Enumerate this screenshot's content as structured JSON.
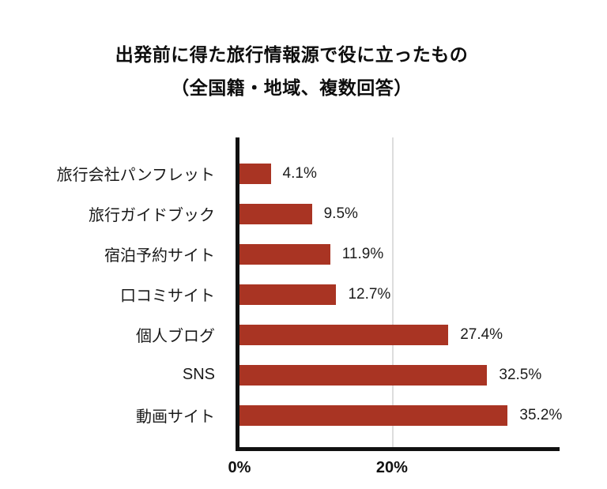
{
  "chart": {
    "title_line1": "出発前に得た旅行情報源で役に立ったもの",
    "title_line2": "（全国籍・地域、複数回答）",
    "bar_color": "#a93423",
    "axis_color": "#111111",
    "gridline_color": "#dddddd",
    "xtick_0": "0%",
    "xtick_20": "20%"
  },
  "chart_data": {
    "type": "bar",
    "orientation": "horizontal",
    "title": "出発前に得た旅行情報源で役に立ったもの（全国籍・地域、複数回答）",
    "categories": [
      "旅行会社パンフレット",
      "旅行ガイドブック",
      "宿泊予約サイト",
      "口コミサイト",
      "個人ブログ",
      "SNS",
      "動画サイト"
    ],
    "values": [
      4.1,
      9.5,
      11.9,
      12.7,
      27.4,
      32.5,
      35.2
    ],
    "value_labels": [
      "4.1%",
      "9.5%",
      "11.9%",
      "12.7%",
      "27.4%",
      "32.5%",
      "35.2%"
    ],
    "xlabel": "",
    "ylabel": "",
    "xticks": [
      "0%",
      "20%"
    ],
    "xtick_values": [
      0,
      20
    ],
    "xlim": [
      0,
      42
    ],
    "grid": "single vertical gridline at 20%",
    "legend": "none",
    "bar_color": "#a93423"
  }
}
